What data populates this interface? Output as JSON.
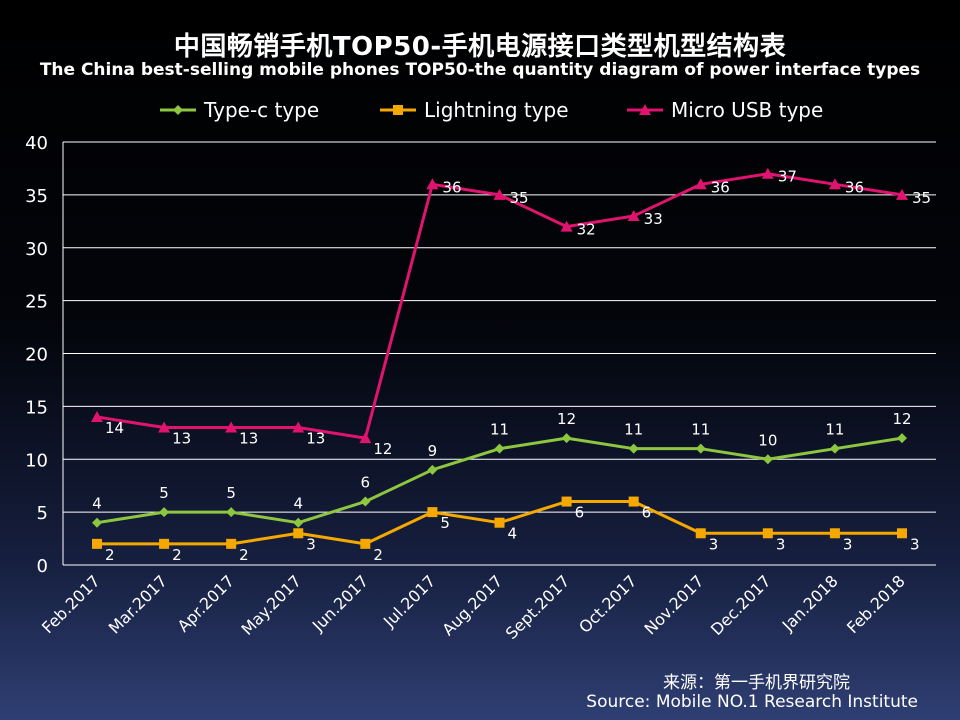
{
  "title": "中国畅销手机TOP50-手机电源接口类型机型结构表",
  "subtitle": "The China best-selling mobile phones TOP50-the quantity diagram of power interface types",
  "source_zh": "来源：第一手机界研究院",
  "source_en": "Source: Mobile NO.1 Research Institute",
  "chart_data": {
    "type": "line",
    "categories": [
      "Feb.2017",
      "Mar.2017",
      "Apr.2017",
      "May.2017",
      "Jun.2017",
      "Jul.2017",
      "Aug.2017",
      "Sept.2017",
      "Oct.2017",
      "Nov.2017",
      "Dec.2017",
      "Jan.2018",
      "Feb.2018"
    ],
    "series": [
      {
        "name": "Type-c type",
        "color": "#8dc63f",
        "marker": "diamond",
        "values": [
          4,
          5,
          5,
          4,
          6,
          9,
          11,
          12,
          11,
          11,
          10,
          11,
          12
        ]
      },
      {
        "name": "Lightning type",
        "color": "#f5a800",
        "marker": "square",
        "values": [
          2,
          2,
          2,
          3,
          2,
          5,
          4,
          6,
          6,
          3,
          3,
          3,
          3
        ]
      },
      {
        "name": "Micro USB type",
        "color": "#e0146e",
        "marker": "triangle",
        "values": [
          14,
          13,
          13,
          13,
          12,
          36,
          35,
          32,
          33,
          36,
          37,
          36,
          35
        ]
      }
    ],
    "ylim": [
      0,
      40
    ],
    "yticks": [
      0,
      5,
      10,
      15,
      20,
      25,
      30,
      35,
      40
    ],
    "grid": true,
    "legend": "top",
    "data_labels": true
  }
}
